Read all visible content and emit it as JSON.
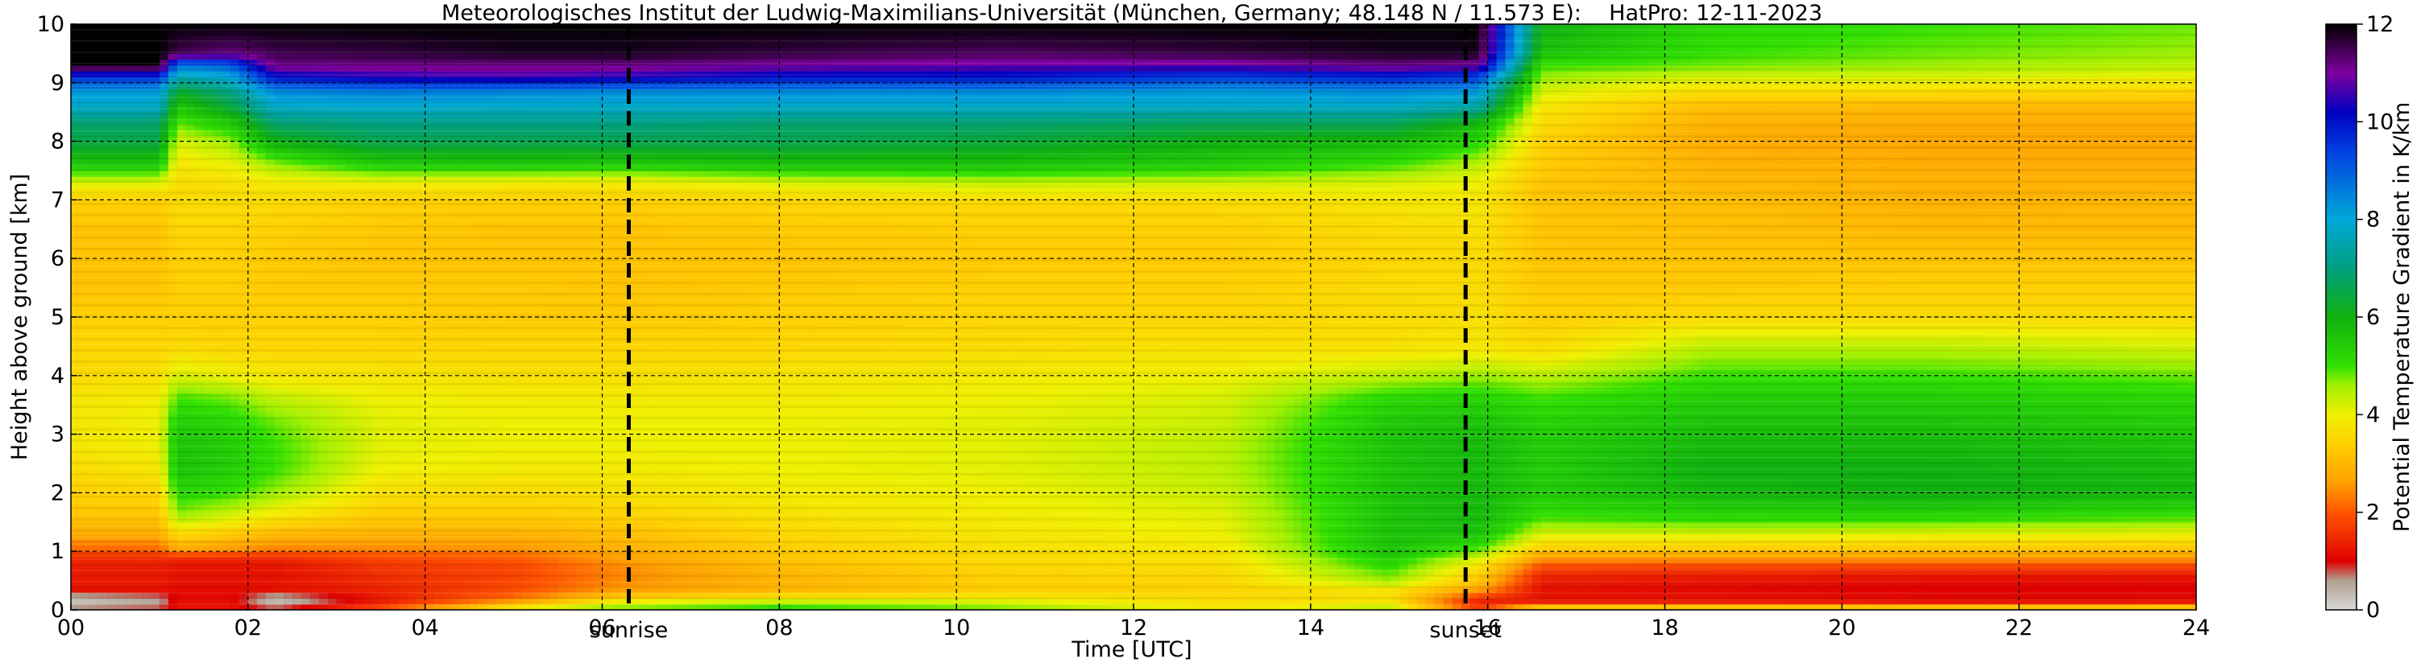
{
  "chart_data": {
    "type": "heatmap",
    "title": "Meteorologisches Institut der Ludwig-Maximilians-Universität (München, Germany; 48.148 N / 11.573 E):    HatPro: 12-11-2023",
    "xlabel": "Time [UTC]",
    "ylabel": "Height above ground [km]",
    "colorbar_label": "Potential Temperature Gradient in K/km",
    "xlim": [
      0,
      24
    ],
    "ylim": [
      0,
      10
    ],
    "x_ticks": [
      0,
      2,
      4,
      6,
      8,
      10,
      12,
      14,
      16,
      18,
      20,
      22,
      24
    ],
    "x_tick_labels": [
      "00",
      "02",
      "04",
      "06",
      "08",
      "10",
      "12",
      "14",
      "16",
      "18",
      "20",
      "22",
      "24"
    ],
    "y_ticks": [
      0,
      1,
      2,
      3,
      4,
      5,
      6,
      7,
      8,
      9,
      10
    ],
    "y_tick_labels": [
      "0",
      "1",
      "2",
      "3",
      "4",
      "5",
      "6",
      "7",
      "8",
      "9",
      "10"
    ],
    "colorbar_range": [
      0,
      12
    ],
    "colorbar_ticks": [
      0,
      2,
      4,
      6,
      8,
      10,
      12
    ],
    "colorbar_tick_labels": [
      "0",
      "2",
      "4",
      "6",
      "8",
      "10",
      "12"
    ],
    "grid": true,
    "events": [
      {
        "label": "sunrise",
        "time": 6.3
      },
      {
        "label": "sunset",
        "time": 15.75
      }
    ],
    "colormap": [
      {
        "v": 0.0,
        "c": "#d8d8d8"
      },
      {
        "v": 0.6,
        "c": "#b0a090"
      },
      {
        "v": 1.0,
        "c": "#e00000"
      },
      {
        "v": 2.0,
        "c": "#ff5500"
      },
      {
        "v": 2.6,
        "c": "#ffa000"
      },
      {
        "v": 3.4,
        "c": "#ffd000"
      },
      {
        "v": 4.0,
        "c": "#f0f000"
      },
      {
        "v": 4.6,
        "c": "#a0f000"
      },
      {
        "v": 5.0,
        "c": "#30e000"
      },
      {
        "v": 6.0,
        "c": "#10b010"
      },
      {
        "v": 7.0,
        "c": "#00a080"
      },
      {
        "v": 8.0,
        "c": "#00a8d8"
      },
      {
        "v": 9.4,
        "c": "#0040e0"
      },
      {
        "v": 10.2,
        "c": "#0000c0"
      },
      {
        "v": 11.0,
        "c": "#8000a0"
      },
      {
        "v": 12.0,
        "c": "#000000"
      }
    ],
    "profile_heights_km": [
      0,
      0.1,
      0.2,
      0.35,
      0.5,
      0.7,
      0.9,
      1.0,
      1.3,
      1.6,
      2.0,
      2.4,
      2.8,
      3.2,
      3.6,
      4.0,
      4.5,
      5.0,
      5.5,
      6.0,
      6.5,
      7.0,
      7.3,
      7.6,
      8.0,
      8.3,
      8.6,
      8.85,
      9.1,
      9.3,
      9.5,
      10.0
    ],
    "profiles": [
      {
        "time": 0.0,
        "values": [
          1.0,
          0.2,
          0.3,
          1.2,
          1.3,
          1.3,
          1.5,
          2.0,
          2.8,
          3.2,
          3.4,
          3.6,
          3.8,
          3.8,
          3.8,
          3.6,
          3.5,
          3.4,
          3.2,
          3.2,
          3.2,
          3.4,
          4.2,
          5.5,
          6.5,
          6.8,
          7.8,
          8.2,
          9.6,
          12.0,
          12.0,
          12.0
        ]
      },
      {
        "time": 1.0,
        "values": [
          1.0,
          0.5,
          0.6,
          1.2,
          1.3,
          1.3,
          1.5,
          2.0,
          2.8,
          3.2,
          3.5,
          3.8,
          4.0,
          4.0,
          3.9,
          3.7,
          3.5,
          3.4,
          3.2,
          3.2,
          3.2,
          3.4,
          4.2,
          5.5,
          6.5,
          6.8,
          7.8,
          8.2,
          9.6,
          12.0,
          12.0,
          12.0
        ]
      },
      {
        "time": 1.2,
        "values": [
          1.2,
          1.2,
          1.1,
          1.1,
          1.2,
          1.2,
          1.4,
          2.6,
          3.6,
          4.6,
          5.2,
          5.6,
          5.6,
          5.4,
          5.0,
          4.2,
          3.6,
          3.4,
          3.4,
          3.4,
          3.5,
          3.6,
          3.6,
          3.8,
          4.2,
          4.8,
          5.5,
          6.2,
          7.5,
          8.6,
          11.5,
          12.0
        ]
      },
      {
        "time": 1.8,
        "values": [
          1.2,
          1.2,
          1.1,
          1.1,
          1.2,
          1.2,
          1.4,
          2.4,
          3.3,
          4.2,
          5.0,
          5.4,
          5.4,
          5.2,
          4.8,
          4.0,
          3.5,
          3.4,
          3.4,
          3.4,
          3.5,
          3.6,
          3.7,
          4.0,
          4.6,
          5.4,
          6.4,
          7.0,
          8.0,
          9.0,
          11.2,
          12.0
        ]
      },
      {
        "time": 2.3,
        "values": [
          1.1,
          0.3,
          0.3,
          1.2,
          1.2,
          1.2,
          1.4,
          2.2,
          3.0,
          3.8,
          4.6,
          5.0,
          5.0,
          4.8,
          4.4,
          3.8,
          3.5,
          3.4,
          3.3,
          3.3,
          3.4,
          3.6,
          3.9,
          4.6,
          6.0,
          6.8,
          7.8,
          8.4,
          10.0,
          11.2,
          11.5,
          12.0
        ]
      },
      {
        "time": 3.5,
        "values": [
          2.2,
          1.4,
          1.3,
          1.4,
          1.5,
          1.6,
          1.8,
          2.3,
          2.9,
          3.3,
          3.7,
          4.0,
          4.1,
          4.1,
          4.0,
          3.8,
          3.5,
          3.4,
          3.3,
          3.2,
          3.3,
          3.4,
          4.0,
          5.4,
          6.6,
          7.0,
          7.9,
          8.6,
          10.4,
          11.2,
          11.6,
          12.0
        ]
      },
      {
        "time": 5.0,
        "values": [
          4.4,
          3.0,
          2.2,
          1.9,
          1.8,
          1.8,
          2.0,
          2.4,
          2.9,
          3.3,
          3.6,
          3.9,
          4.0,
          4.0,
          3.9,
          3.7,
          3.5,
          3.3,
          3.3,
          3.2,
          3.2,
          3.4,
          3.9,
          5.5,
          6.6,
          7.0,
          7.8,
          8.5,
          10.6,
          11.2,
          11.8,
          12.0
        ]
      },
      {
        "time": 6.2,
        "values": [
          4.8,
          4.4,
          3.4,
          2.6,
          2.4,
          2.4,
          2.6,
          2.8,
          3.1,
          3.4,
          3.7,
          3.9,
          4.0,
          4.0,
          3.9,
          3.7,
          3.5,
          3.3,
          3.2,
          3.2,
          3.2,
          3.4,
          3.9,
          5.4,
          6.6,
          7.0,
          7.8,
          8.4,
          10.4,
          11.2,
          11.8,
          12.0
        ]
      },
      {
        "time": 8.0,
        "values": [
          5.2,
          4.8,
          3.8,
          3.0,
          2.9,
          3.0,
          3.2,
          3.3,
          3.5,
          3.7,
          3.9,
          4.0,
          4.0,
          4.0,
          3.9,
          3.8,
          3.5,
          3.4,
          3.3,
          3.2,
          3.3,
          3.5,
          4.2,
          5.6,
          6.6,
          6.8,
          7.8,
          8.4,
          10.0,
          11.0,
          11.6,
          12.0
        ]
      },
      {
        "time": 10.5,
        "values": [
          4.9,
          4.4,
          3.9,
          3.4,
          3.4,
          3.5,
          3.6,
          3.7,
          3.8,
          3.9,
          4.0,
          4.1,
          4.1,
          4.1,
          4.0,
          3.9,
          3.6,
          3.5,
          3.4,
          3.3,
          3.4,
          3.6,
          4.4,
          5.6,
          6.4,
          6.8,
          7.8,
          8.4,
          10.0,
          10.8,
          11.4,
          12.0
        ]
      },
      {
        "time": 13.0,
        "values": [
          3.9,
          3.7,
          3.6,
          3.5,
          3.5,
          3.6,
          3.7,
          3.8,
          4.0,
          4.1,
          4.3,
          4.4,
          4.4,
          4.3,
          4.2,
          4.0,
          3.7,
          3.5,
          3.4,
          3.3,
          3.4,
          3.6,
          4.3,
          5.4,
          6.0,
          6.6,
          7.8,
          8.2,
          9.4,
          10.8,
          11.6,
          12.0
        ]
      },
      {
        "time": 14.9,
        "values": [
          4.6,
          4.0,
          3.6,
          3.8,
          4.6,
          5.0,
          5.4,
          5.6,
          5.6,
          5.6,
          5.6,
          5.6,
          5.6,
          5.5,
          5.2,
          4.4,
          3.7,
          3.6,
          3.6,
          3.5,
          3.6,
          3.8,
          4.2,
          5.0,
          5.8,
          6.6,
          7.8,
          8.4,
          9.8,
          11.2,
          11.8,
          12.0
        ]
      },
      {
        "time": 15.9,
        "values": [
          2.0,
          1.2,
          1.6,
          2.6,
          3.2,
          3.6,
          4.2,
          4.8,
          5.6,
          5.8,
          5.8,
          5.8,
          5.8,
          5.6,
          5.3,
          4.6,
          3.8,
          3.7,
          3.6,
          3.6,
          3.7,
          3.8,
          4.0,
          4.4,
          5.2,
          5.8,
          7.4,
          8.2,
          9.4,
          11.0,
          11.8,
          12.0
        ]
      },
      {
        "time": 16.6,
        "values": [
          4.8,
          1.6,
          1.2,
          1.2,
          1.3,
          1.7,
          2.6,
          3.2,
          4.2,
          5.0,
          5.4,
          5.4,
          5.4,
          5.3,
          5.0,
          4.4,
          3.6,
          3.4,
          3.3,
          3.2,
          3.2,
          3.2,
          3.2,
          3.3,
          3.4,
          3.6,
          3.8,
          4.2,
          4.6,
          5.0,
          5.6,
          6.0
        ]
      },
      {
        "time": 18.5,
        "values": [
          4.8,
          1.6,
          1.2,
          1.1,
          1.2,
          1.6,
          2.6,
          3.2,
          4.2,
          5.2,
          5.8,
          6.0,
          5.8,
          5.6,
          5.4,
          5.0,
          4.4,
          3.6,
          3.3,
          3.2,
          3.1,
          3.1,
          3.0,
          2.9,
          2.8,
          2.9,
          3.1,
          3.6,
          4.2,
          4.8,
          5.0,
          5.2
        ]
      },
      {
        "time": 21.0,
        "values": [
          4.8,
          1.4,
          1.1,
          1.0,
          1.1,
          1.6,
          2.6,
          3.1,
          4.1,
          5.2,
          6.0,
          6.0,
          5.8,
          5.6,
          5.4,
          5.0,
          4.4,
          3.6,
          3.4,
          3.2,
          3.0,
          2.9,
          2.9,
          2.8,
          2.7,
          2.8,
          3.0,
          3.6,
          4.2,
          4.6,
          4.8,
          5.0
        ]
      },
      {
        "time": 24.0,
        "values": [
          4.8,
          1.5,
          1.1,
          1.0,
          1.1,
          1.6,
          2.6,
          3.1,
          4.0,
          5.0,
          5.8,
          5.8,
          5.6,
          5.4,
          5.2,
          4.8,
          4.2,
          3.6,
          3.4,
          3.2,
          3.0,
          3.0,
          2.9,
          2.8,
          2.7,
          2.8,
          3.0,
          3.5,
          4.0,
          4.4,
          4.6,
          4.8
        ]
      }
    ]
  }
}
